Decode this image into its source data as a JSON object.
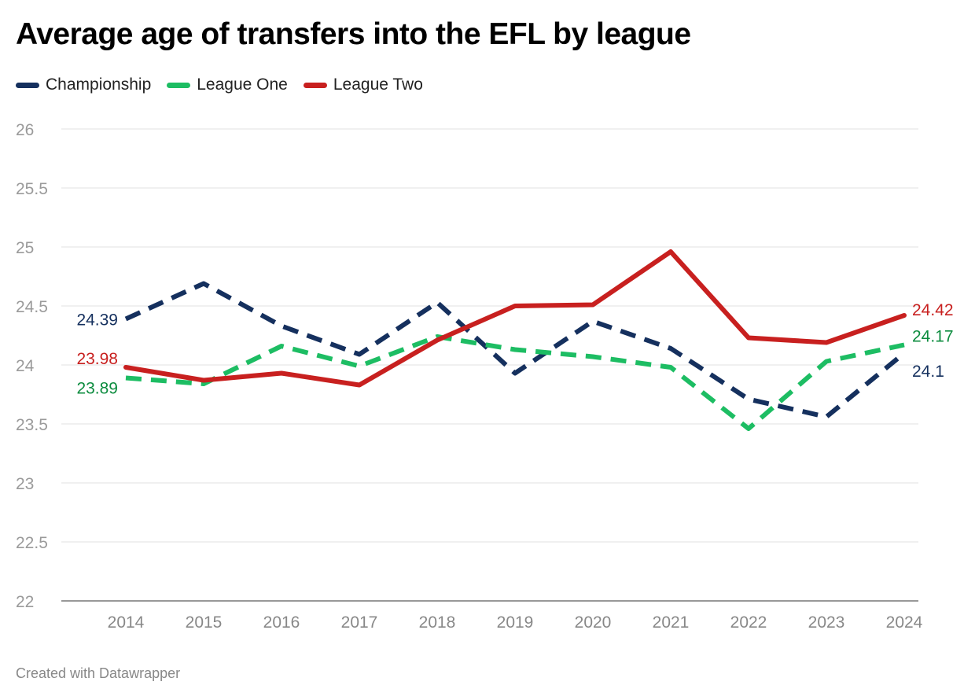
{
  "chart_data": {
    "type": "line",
    "title": "Average age of transfers into the EFL by league",
    "xlabel": "",
    "ylabel": "",
    "x": [
      2014,
      2015,
      2016,
      2017,
      2018,
      2019,
      2020,
      2021,
      2022,
      2023,
      2024
    ],
    "ylim": [
      22,
      26
    ],
    "yticks": [
      "22",
      "22.5",
      "23",
      "23.5",
      "24",
      "24.5",
      "25",
      "25.5",
      "26"
    ],
    "grid": true,
    "legend_position": "top-left",
    "series": [
      {
        "name": "Championship",
        "color": "#15305e",
        "dash": true,
        "values": [
          24.39,
          24.69,
          24.33,
          24.09,
          24.53,
          23.93,
          24.37,
          24.14,
          23.71,
          23.56,
          24.1
        ],
        "start_label": "24.39",
        "end_label": "24.1"
      },
      {
        "name": "League One",
        "color": "#1dbd63",
        "dash": true,
        "values": [
          23.89,
          23.84,
          24.16,
          23.99,
          24.24,
          24.13,
          24.07,
          23.98,
          23.46,
          24.03,
          24.17
        ],
        "start_label": "23.89",
        "end_label": "24.17",
        "label_color": "#0d8c3f"
      },
      {
        "name": "League Two",
        "color": "#c8201f",
        "dash": false,
        "values": [
          23.98,
          23.87,
          23.93,
          23.83,
          24.21,
          24.5,
          24.51,
          24.96,
          24.23,
          24.19,
          24.42
        ],
        "start_label": "23.98",
        "end_label": "24.42"
      }
    ]
  },
  "footer": "Created with Datawrapper"
}
